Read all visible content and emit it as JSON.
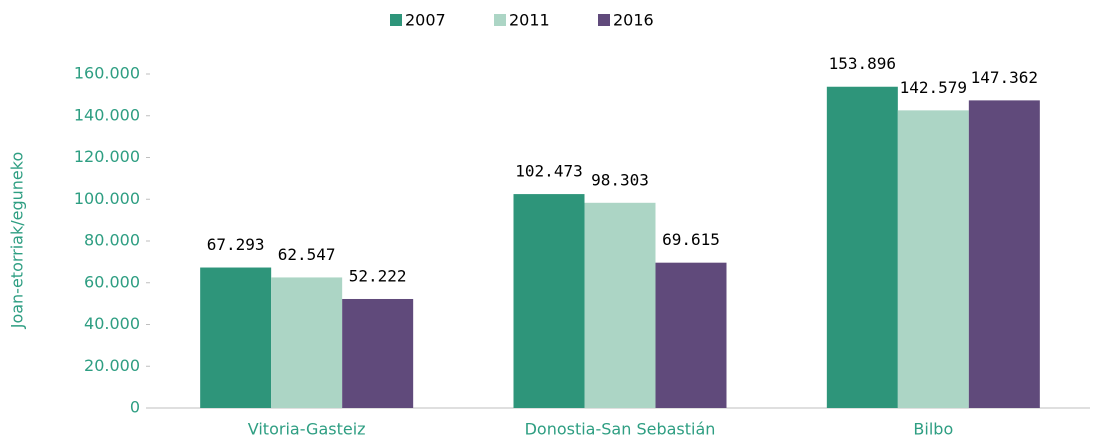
{
  "chart_data": {
    "type": "bar",
    "y_axis_label": "Joan-etorriak/eguneko",
    "categories": [
      "Vitoria-Gasteiz",
      "Donostia-San Sebastián",
      "Bilbo"
    ],
    "series": [
      {
        "name": "2007",
        "color": "#2e957a",
        "values": [
          67293,
          102473,
          153896
        ],
        "value_labels": [
          "67.293",
          "102.473",
          "153.896"
        ]
      },
      {
        "name": "2011",
        "color": "#acd5c5",
        "values": [
          62547,
          98303,
          142579
        ],
        "value_labels": [
          "62.547",
          "98.303",
          "142.579"
        ]
      },
      {
        "name": "2016",
        "color": "#604a7b",
        "values": [
          52222,
          69615,
          147362
        ],
        "value_labels": [
          "52.222",
          "69.615",
          "147.362"
        ]
      }
    ],
    "ylim": [
      0,
      160000
    ],
    "yticks": [
      0,
      {
        "value": 20000,
        "label": "20.000"
      },
      {
        "value": 40000,
        "label": "40.000"
      },
      {
        "value": 60000,
        "label": "60.000"
      },
      {
        "value": 80000,
        "label": "80.000"
      },
      {
        "value": 100000,
        "label": "100.000"
      },
      {
        "value": 120000,
        "label": "120.000"
      },
      {
        "value": 140000,
        "label": "140.000"
      },
      {
        "value": 160000,
        "label": "160.000"
      }
    ],
    "legend": "top"
  }
}
